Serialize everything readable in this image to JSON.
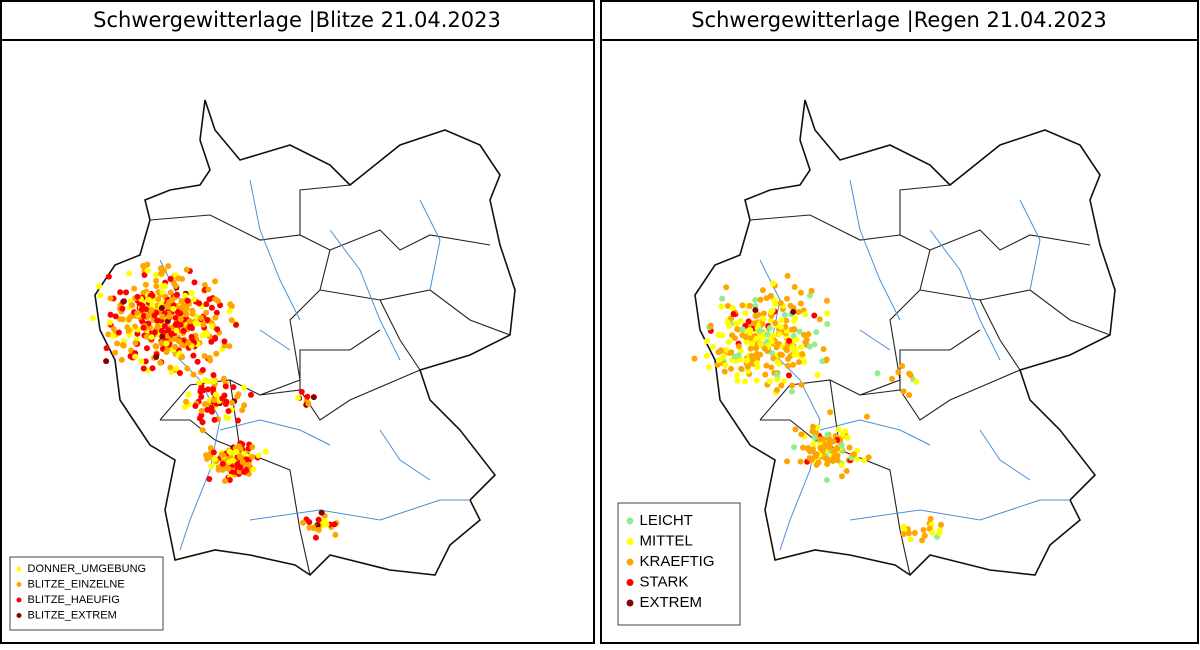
{
  "panels": [
    {
      "title": "Schwergewitterlage |Blitze 21.04.2023",
      "legend": [
        {
          "label": "DONNER_UMGEBUNG",
          "color": "#ffff00"
        },
        {
          "label": "BLITZE_EINZELNE",
          "color": "#ffa500"
        },
        {
          "label": "BLITZE_HAEUFIG",
          "color": "#ff0000"
        },
        {
          "label": "BLITZE_EXTREM",
          "color": "#8b0000"
        }
      ]
    },
    {
      "title": "Schwergewitterlage |Regen 21.04.2023",
      "legend": [
        {
          "label": "LEICHT",
          "color": "#90ee90"
        },
        {
          "label": "MITTEL",
          "color": "#ffff00"
        },
        {
          "label": "KRAEFTIG",
          "color": "#ffa500"
        },
        {
          "label": "STARK",
          "color": "#ff0000"
        },
        {
          "label": "EXTREM",
          "color": "#8b0000"
        }
      ]
    }
  ]
}
